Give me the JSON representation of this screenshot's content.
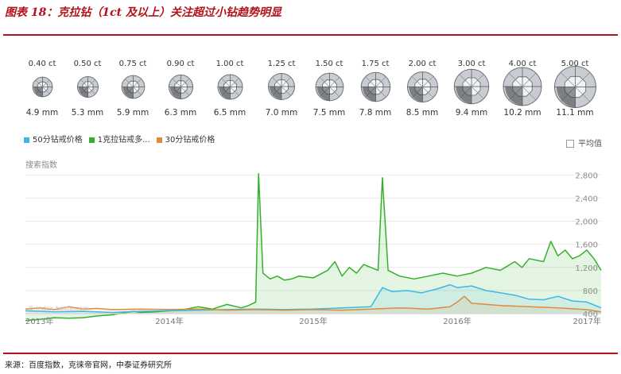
{
  "header": {
    "title": "图表 18：克拉钻（1ct 及以上）关注超过小钻趋势明显"
  },
  "diamonds": [
    {
      "carat": "0.40 ct",
      "mm": "4.9 mm",
      "size": 0.4
    },
    {
      "carat": "0.50 ct",
      "mm": "5.3 mm",
      "size": 0.5
    },
    {
      "carat": "0.75 ct",
      "mm": "5.9 mm",
      "size": 0.75
    },
    {
      "carat": "0.90 ct",
      "mm": "6.3 mm",
      "size": 0.9
    },
    {
      "carat": "1.00 ct",
      "mm": "6.5 mm",
      "size": 1.0
    },
    {
      "carat": "1.25 ct",
      "mm": "7.0 mm",
      "size": 1.25
    },
    {
      "carat": "1.50 ct",
      "mm": "7.5 mm",
      "size": 1.5
    },
    {
      "carat": "1.75 ct",
      "mm": "7.8 mm",
      "size": 1.75
    },
    {
      "carat": "2.00 ct",
      "mm": "8.5 mm",
      "size": 2.0
    },
    {
      "carat": "3.00 ct",
      "mm": "9.4 mm",
      "size": 3.0
    },
    {
      "carat": "4.00 ct",
      "mm": "10.2 mm",
      "size": 4.0
    },
    {
      "carat": "5.00 ct",
      "mm": "11.1 mm",
      "size": 5.0
    }
  ],
  "legend": {
    "items": [
      {
        "label": "50分钻戒价格",
        "color": "#3bb8e3"
      },
      {
        "label": "1克拉钻戒多...",
        "color": "#36b02c"
      },
      {
        "label": "30分钻戒价格",
        "color": "#e08a3c"
      }
    ],
    "average_label": "平均值"
  },
  "chart_data": {
    "type": "area",
    "ylabel": "搜索指数",
    "watermark": "© index.baidu.com",
    "ylim": [
      400,
      2900
    ],
    "yticks": [
      400,
      800,
      1200,
      1600,
      2000,
      2400,
      2800
    ],
    "yticklabels": [
      "400",
      "800",
      "1,200",
      "1,600",
      "2,000",
      "2,400",
      "2,800"
    ],
    "xlim": [
      2013.0,
      2017.0
    ],
    "xticks": [
      2013.0,
      2014.0,
      2015.0,
      2016.0,
      2017.0
    ],
    "xticklabels": [
      "2013年",
      "2014年",
      "2015年",
      "2016年",
      "2017年"
    ],
    "series": [
      {
        "name": "1克拉钻戒多...",
        "color": "#36b02c",
        "points": [
          [
            2013.0,
            280
          ],
          [
            2013.1,
            300
          ],
          [
            2013.2,
            330
          ],
          [
            2013.3,
            320
          ],
          [
            2013.4,
            330
          ],
          [
            2013.5,
            360
          ],
          [
            2013.6,
            380
          ],
          [
            2013.7,
            420
          ],
          [
            2013.75,
            440
          ],
          [
            2013.8,
            420
          ],
          [
            2013.9,
            430
          ],
          [
            2014.0,
            450
          ],
          [
            2014.1,
            470
          ],
          [
            2014.2,
            520
          ],
          [
            2014.3,
            480
          ],
          [
            2014.4,
            560
          ],
          [
            2014.5,
            500
          ],
          [
            2014.55,
            540
          ],
          [
            2014.6,
            600
          ],
          [
            2014.62,
            2820
          ],
          [
            2014.65,
            1100
          ],
          [
            2014.7,
            1000
          ],
          [
            2014.75,
            1050
          ],
          [
            2014.8,
            980
          ],
          [
            2014.85,
            1000
          ],
          [
            2014.9,
            1050
          ],
          [
            2015.0,
            1020
          ],
          [
            2015.1,
            1150
          ],
          [
            2015.15,
            1300
          ],
          [
            2015.2,
            1050
          ],
          [
            2015.25,
            1200
          ],
          [
            2015.3,
            1100
          ],
          [
            2015.35,
            1250
          ],
          [
            2015.4,
            1200
          ],
          [
            2015.45,
            1150
          ],
          [
            2015.48,
            2750
          ],
          [
            2015.52,
            1150
          ],
          [
            2015.6,
            1050
          ],
          [
            2015.7,
            1000
          ],
          [
            2015.8,
            1050
          ],
          [
            2015.9,
            1100
          ],
          [
            2016.0,
            1050
          ],
          [
            2016.1,
            1100
          ],
          [
            2016.2,
            1200
          ],
          [
            2016.3,
            1150
          ],
          [
            2016.4,
            1300
          ],
          [
            2016.45,
            1200
          ],
          [
            2016.5,
            1350
          ],
          [
            2016.6,
            1300
          ],
          [
            2016.65,
            1650
          ],
          [
            2016.7,
            1400
          ],
          [
            2016.75,
            1500
          ],
          [
            2016.8,
            1350
          ],
          [
            2016.85,
            1400
          ],
          [
            2016.9,
            1500
          ],
          [
            2016.95,
            1350
          ],
          [
            2017.0,
            1150
          ]
        ]
      },
      {
        "name": "50分钻戒价格",
        "color": "#3bb8e3",
        "points": [
          [
            2013.0,
            450
          ],
          [
            2013.2,
            430
          ],
          [
            2013.4,
            440
          ],
          [
            2013.6,
            420
          ],
          [
            2013.8,
            440
          ],
          [
            2014.0,
            450
          ],
          [
            2014.2,
            460
          ],
          [
            2014.4,
            470
          ],
          [
            2014.6,
            480
          ],
          [
            2014.8,
            470
          ],
          [
            2015.0,
            480
          ],
          [
            2015.2,
            500
          ],
          [
            2015.4,
            520
          ],
          [
            2015.48,
            850
          ],
          [
            2015.55,
            780
          ],
          [
            2015.65,
            800
          ],
          [
            2015.75,
            760
          ],
          [
            2015.85,
            820
          ],
          [
            2015.95,
            900
          ],
          [
            2016.0,
            850
          ],
          [
            2016.1,
            880
          ],
          [
            2016.2,
            800
          ],
          [
            2016.3,
            760
          ],
          [
            2016.4,
            720
          ],
          [
            2016.5,
            650
          ],
          [
            2016.6,
            640
          ],
          [
            2016.7,
            700
          ],
          [
            2016.8,
            620
          ],
          [
            2016.9,
            600
          ],
          [
            2017.0,
            500
          ]
        ]
      },
      {
        "name": "30分钻戒价格",
        "color": "#e08a3c",
        "points": [
          [
            2013.0,
            480
          ],
          [
            2013.1,
            500
          ],
          [
            2013.2,
            470
          ],
          [
            2013.3,
            520
          ],
          [
            2013.4,
            480
          ],
          [
            2013.5,
            490
          ],
          [
            2013.6,
            470
          ],
          [
            2013.8,
            480
          ],
          [
            2014.0,
            470
          ],
          [
            2014.2,
            480
          ],
          [
            2014.4,
            460
          ],
          [
            2014.6,
            470
          ],
          [
            2014.8,
            460
          ],
          [
            2015.0,
            470
          ],
          [
            2015.2,
            460
          ],
          [
            2015.4,
            480
          ],
          [
            2015.6,
            500
          ],
          [
            2015.8,
            480
          ],
          [
            2015.95,
            520
          ],
          [
            2016.0,
            600
          ],
          [
            2016.05,
            700
          ],
          [
            2016.1,
            580
          ],
          [
            2016.3,
            540
          ],
          [
            2016.5,
            520
          ],
          [
            2016.7,
            500
          ],
          [
            2016.9,
            470
          ],
          [
            2017.0,
            430
          ]
        ]
      }
    ]
  },
  "footer": {
    "source": "来源：百度指数，克徕帝官网，中泰证券研究所"
  }
}
